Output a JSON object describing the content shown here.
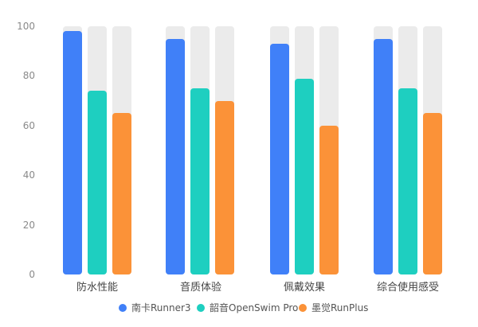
{
  "chart_data": {
    "type": "bar",
    "title": "",
    "xlabel": "",
    "ylabel": "",
    "ylim": [
      0,
      100
    ],
    "yticks": [
      "100",
      "80",
      "60",
      "40",
      "20",
      "0"
    ],
    "grid": false,
    "legend_position": "bottom",
    "categories": [
      "防水性能",
      "音质体验",
      "佩戴效果",
      "综合使用感受"
    ],
    "series": [
      {
        "name": "南卡Runner3",
        "color": "#4080f8",
        "values": [
          98,
          95,
          93,
          95
        ]
      },
      {
        "name": "韶音OpenSwim Pro",
        "color": "#1ecfc0",
        "values": [
          74,
          75,
          79,
          75
        ]
      },
      {
        "name": "墨觉RunPlus",
        "color": "#fb9238",
        "values": [
          65,
          70,
          60,
          65
        ]
      }
    ],
    "background_bar_color": "#ebebeb"
  }
}
